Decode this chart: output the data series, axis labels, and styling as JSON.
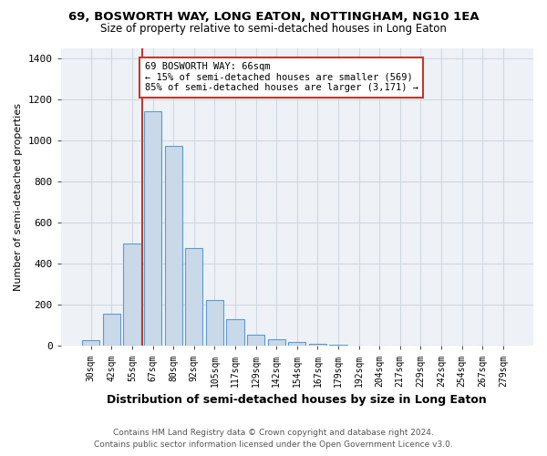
{
  "title": "69, BOSWORTH WAY, LONG EATON, NOTTINGHAM, NG10 1EA",
  "subtitle": "Size of property relative to semi-detached houses in Long Eaton",
  "xlabel": "Distribution of semi-detached houses by size in Long Eaton",
  "ylabel": "Number of semi-detached properties",
  "footer_line1": "Contains HM Land Registry data © Crown copyright and database right 2024.",
  "footer_line2": "Contains public sector information licensed under the Open Government Licence v3.0.",
  "bin_labels": [
    "30sqm",
    "42sqm",
    "55sqm",
    "67sqm",
    "80sqm",
    "92sqm",
    "105sqm",
    "117sqm",
    "129sqm",
    "142sqm",
    "154sqm",
    "167sqm",
    "179sqm",
    "192sqm",
    "204sqm",
    "217sqm",
    "229sqm",
    "242sqm",
    "254sqm",
    "267sqm",
    "279sqm"
  ],
  "bin_values": [
    30,
    155,
    500,
    1140,
    975,
    475,
    225,
    130,
    55,
    33,
    20,
    10,
    8,
    0,
    0,
    0,
    0,
    0,
    0,
    0,
    0
  ],
  "bar_color": "#c9d9e8",
  "bar_edge_color": "#5b9bd5",
  "property_label": "69 BOSWORTH WAY: 66sqm",
  "pct_smaller": 15,
  "count_smaller": "569",
  "pct_larger": 85,
  "count_larger": "3,171",
  "vline_color": "#c0392b",
  "annotation_box_color": "#c0392b",
  "ylim": [
    0,
    1450
  ],
  "yticks": [
    0,
    200,
    400,
    600,
    800,
    1000,
    1200,
    1400
  ],
  "grid_color": "#d0d8e0",
  "bg_color": "#eef2f7",
  "vline_bin_index": 3
}
